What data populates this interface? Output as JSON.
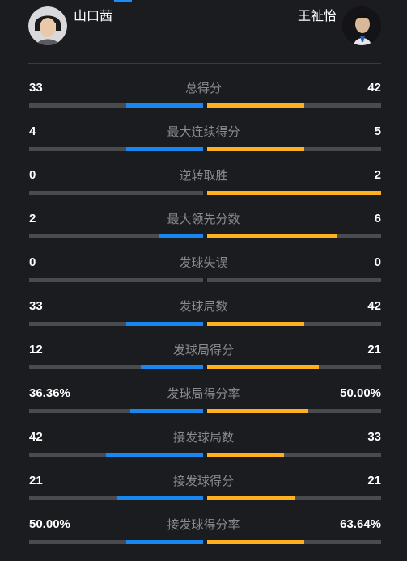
{
  "header": {
    "left_player": {
      "name": "山口茜",
      "avatar_icon": "player-avatar-icon"
    },
    "right_player": {
      "name": "王祉怡",
      "avatar_icon": "player-avatar-icon"
    }
  },
  "colors": {
    "background": "#1b1c20",
    "left_bar": "#1a86f0",
    "right_bar": "#ffb01f",
    "track": "#4a4b50",
    "label": "#8a8b8f"
  },
  "stats": [
    {
      "label": "总得分",
      "left": "33",
      "right": "42",
      "left_fill_pct": 44,
      "right_fill_pct": 56
    },
    {
      "label": "最大连续得分",
      "left": "4",
      "right": "5",
      "left_fill_pct": 44,
      "right_fill_pct": 56
    },
    {
      "label": "逆转取胜",
      "left": "0",
      "right": "2",
      "left_fill_pct": 0,
      "right_fill_pct": 100
    },
    {
      "label": "最大领先分数",
      "left": "2",
      "right": "6",
      "left_fill_pct": 25,
      "right_fill_pct": 75
    },
    {
      "label": "发球失误",
      "left": "0",
      "right": "0",
      "left_fill_pct": 0,
      "right_fill_pct": 0
    },
    {
      "label": "发球局数",
      "left": "33",
      "right": "42",
      "left_fill_pct": 44,
      "right_fill_pct": 56
    },
    {
      "label": "发球局得分",
      "left": "12",
      "right": "21",
      "left_fill_pct": 36,
      "right_fill_pct": 64
    },
    {
      "label": "发球局得分率",
      "left": "36.36%",
      "right": "50.00%",
      "left_fill_pct": 42,
      "right_fill_pct": 58
    },
    {
      "label": "接发球局数",
      "left": "42",
      "right": "33",
      "left_fill_pct": 56,
      "right_fill_pct": 44
    },
    {
      "label": "接发球得分",
      "left": "21",
      "right": "21",
      "left_fill_pct": 50,
      "right_fill_pct": 50
    },
    {
      "label": "接发球得分率",
      "left": "50.00%",
      "right": "63.64%",
      "left_fill_pct": 44,
      "right_fill_pct": 56
    }
  ]
}
